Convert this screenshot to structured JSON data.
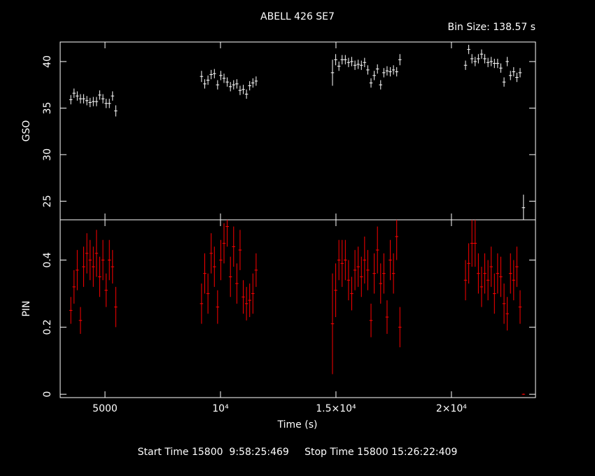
{
  "chart_data": {
    "type": "errorbar",
    "title": "ABELL 426 SE7",
    "subtitle": "Bin Size: 138.57 s",
    "x_label": "Time (s)",
    "footer": "Start Time 15800  9:58:25:469     Stop Time 15800 15:26:22:409",
    "xlim": [
      3060,
      23640
    ],
    "xticks": [
      5000,
      {
        "value": 10000,
        "label": "10⁴"
      },
      {
        "value": 15000,
        "label": "1.5×10⁴"
      },
      {
        "value": 20000,
        "label": "2×10⁴"
      }
    ],
    "x": [
      3520,
      3659,
      3798,
      3937,
      4076,
      4215,
      4354,
      4493,
      4632,
      4771,
      4910,
      5049,
      5188,
      5327,
      5466,
      9180,
      9319,
      9458,
      9597,
      9736,
      9875,
      10014,
      10153,
      10292,
      10431,
      10570,
      10709,
      10848,
      10987,
      11126,
      11265,
      11404,
      11543,
      14850,
      14989,
      15128,
      15267,
      15406,
      15545,
      15684,
      15823,
      15962,
      16101,
      16240,
      16379,
      16518,
      16657,
      16796,
      16935,
      17074,
      17213,
      17352,
      17491,
      17630,
      17769,
      20610,
      20749,
      20888,
      21027,
      21166,
      21305,
      21444,
      21583,
      21722,
      21861,
      22000,
      22139,
      22278,
      22417,
      22556,
      22695,
      22834,
      22973,
      23120
    ],
    "panels": [
      {
        "y_label": "GSO",
        "color": "#ffffff",
        "ylim": [
          23,
          42.1
        ],
        "yticks": [
          25,
          30,
          35,
          40
        ],
        "values": [
          35.9,
          36.6,
          36.3,
          36.0,
          36.0,
          35.8,
          35.6,
          35.7,
          35.7,
          36.4,
          36.0,
          35.5,
          35.5,
          36.3,
          34.7,
          38.4,
          37.6,
          38.0,
          38.6,
          38.7,
          37.5,
          38.5,
          38.2,
          37.8,
          37.3,
          37.5,
          37.6,
          36.9,
          37.0,
          36.5,
          37.4,
          37.7,
          37.9,
          38.8,
          40.2,
          39.5,
          40.2,
          40.2,
          39.9,
          40.0,
          39.6,
          39.7,
          39.6,
          39.9,
          39.1,
          37.7,
          38.5,
          39.2,
          37.5,
          38.8,
          39.0,
          38.9,
          39.1,
          38.9,
          40.2,
          39.6,
          41.3,
          40.3,
          40.0,
          40.3,
          40.8,
          40.3,
          39.9,
          40.0,
          39.8,
          39.8,
          39.3,
          37.8,
          40.0,
          38.5,
          38.9,
          38.3,
          38.8,
          24.3
        ],
        "errors": [
          0.5,
          0.5,
          0.5,
          0.5,
          0.5,
          0.5,
          0.5,
          0.5,
          0.5,
          0.5,
          0.5,
          0.5,
          0.5,
          0.5,
          0.6,
          0.6,
          0.5,
          0.5,
          0.5,
          0.5,
          0.5,
          0.5,
          0.5,
          0.5,
          0.5,
          0.5,
          0.5,
          0.5,
          0.5,
          0.5,
          0.5,
          0.5,
          0.5,
          1.4,
          0.6,
          0.5,
          0.5,
          0.5,
          0.5,
          0.5,
          0.5,
          0.5,
          0.5,
          0.5,
          0.5,
          0.5,
          0.5,
          0.5,
          0.5,
          0.5,
          0.5,
          0.5,
          0.5,
          0.5,
          0.6,
          0.5,
          0.5,
          0.5,
          0.5,
          0.5,
          0.5,
          0.5,
          0.5,
          0.5,
          0.5,
          0.5,
          0.5,
          0.5,
          0.5,
          0.5,
          0.5,
          0.5,
          0.5,
          1.4
        ]
      },
      {
        "y_label": "PIN",
        "color": "#ff0000",
        "ylim": [
          -0.01,
          0.52
        ],
        "yticks": [
          0,
          0.2,
          0.4
        ],
        "values": [
          0.25,
          0.32,
          0.37,
          0.22,
          0.38,
          0.42,
          0.4,
          0.38,
          0.42,
          0.35,
          0.4,
          0.31,
          0.4,
          0.38,
          0.26,
          0.27,
          0.36,
          0.3,
          0.42,
          0.38,
          0.26,
          0.4,
          0.45,
          0.5,
          0.35,
          0.44,
          0.33,
          0.43,
          0.29,
          0.27,
          0.28,
          0.3,
          0.37,
          0.21,
          0.31,
          0.4,
          0.39,
          0.4,
          0.34,
          0.3,
          0.37,
          0.38,
          0.35,
          0.4,
          0.37,
          0.22,
          0.36,
          0.43,
          0.33,
          0.36,
          0.23,
          0.4,
          0.36,
          0.47,
          0.2,
          0.34,
          0.39,
          0.45,
          0.45,
          0.36,
          0.32,
          0.36,
          0.34,
          0.38,
          0.3,
          0.36,
          0.35,
          0.27,
          0.24,
          0.36,
          0.34,
          0.38,
          0.26,
          0.0
        ],
        "errors": [
          0.04,
          0.05,
          0.06,
          0.04,
          0.06,
          0.06,
          0.06,
          0.06,
          0.07,
          0.06,
          0.06,
          0.05,
          0.06,
          0.05,
          0.06,
          0.06,
          0.06,
          0.06,
          0.06,
          0.06,
          0.05,
          0.06,
          0.06,
          0.06,
          0.06,
          0.06,
          0.06,
          0.06,
          0.05,
          0.05,
          0.05,
          0.06,
          0.05,
          0.15,
          0.08,
          0.06,
          0.07,
          0.06,
          0.06,
          0.05,
          0.06,
          0.06,
          0.06,
          0.07,
          0.06,
          0.05,
          0.06,
          0.07,
          0.06,
          0.06,
          0.05,
          0.06,
          0.06,
          0.07,
          0.06,
          0.06,
          0.06,
          0.07,
          0.07,
          0.06,
          0.06,
          0.06,
          0.06,
          0.06,
          0.06,
          0.06,
          0.06,
          0.06,
          0.05,
          0.06,
          0.06,
          0.06,
          0.05,
          0.002
        ]
      }
    ]
  }
}
